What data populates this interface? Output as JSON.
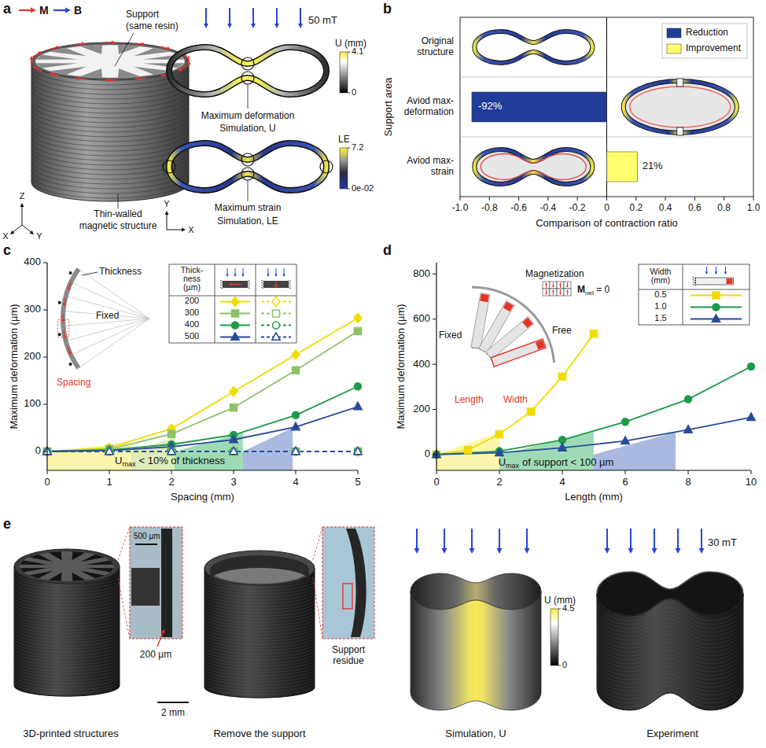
{
  "figure": {
    "panel_letters": [
      "a",
      "b",
      "c",
      "d",
      "e"
    ],
    "a": {
      "legend": [
        "M",
        "B"
      ],
      "support_label": [
        "Support",
        "(same resin)"
      ],
      "structure_label": [
        "Thin-walled",
        "magnetic structure"
      ],
      "axes3d": [
        "Z",
        "X",
        "Y"
      ],
      "field": "50 mT",
      "axes2d": [
        "Y",
        "X"
      ],
      "sim_u": {
        "marker_label": "Maximum deformation",
        "caption": "Simulation, U",
        "colorbar": {
          "title": "U (mm)",
          "range": [
            0,
            4.1
          ],
          "ticks": [
            0,
            4.1
          ]
        }
      },
      "sim_le": {
        "marker_label": "Maximum strain",
        "caption": "Simulation, LE",
        "colorbar": {
          "title": "LE",
          "range": [
            0,
            7.2
          ],
          "ticks": [
            {
              "value": 0,
              "label": "0e-02"
            },
            7.2
          ]
        }
      }
    },
    "e": {
      "captions": [
        "3D-printed structures",
        "Remove the support",
        "Simulation, U",
        "Experiment"
      ],
      "scale_labels": [
        "500 µm",
        "200 µm",
        "2 mm"
      ],
      "residue_label": "Support residue",
      "field": "30 mT",
      "colorbar": {
        "title": "U (mm)",
        "range": [
          0,
          4.5
        ],
        "ticks": [
          0,
          4.5
        ]
      }
    }
  },
  "chart_data": [
    {
      "type": "bar",
      "orientation": "horizontal",
      "categories": [
        "Original structure",
        "Aviod max-deformation",
        "Aviod max-strain"
      ],
      "series": [
        {
          "name": "Reduction",
          "color": "#1f3c98",
          "values": [
            null,
            -0.92,
            null
          ],
          "value_labels": [
            null,
            "-92%",
            null
          ]
        },
        {
          "name": "Improvement",
          "color": "#ffff6e",
          "values": [
            null,
            null,
            0.21
          ],
          "value_labels": [
            null,
            null,
            "21%"
          ]
        }
      ],
      "xlabel": "Comparison of contraction ratio",
      "ylabel": "Support area",
      "xlim": [
        -1,
        1
      ],
      "xticks": [
        {
          "value": -1,
          "label": "-1.0"
        },
        -0.8,
        -0.6,
        -0.4,
        -0.2,
        0,
        0.2,
        0.4,
        0.6,
        0.8,
        {
          "value": 1,
          "label": "1.0"
        }
      ],
      "legend": "upper right",
      "data_labels": true
    },
    {
      "type": "line",
      "xlabel": "Spacing (mm)",
      "ylabel": "Maximum deformation (µm)",
      "x": [
        0,
        1,
        2,
        3,
        4,
        5
      ],
      "xlim": [
        0,
        5
      ],
      "ylim": [
        -40,
        400
      ],
      "xticks": [
        0,
        1,
        2,
        3,
        4,
        5
      ],
      "yticks": [
        0,
        100,
        200,
        300,
        400
      ],
      "legend": "upper right",
      "legend_title": "Thick-ness (µm)",
      "series": [
        {
          "name": "200",
          "color": "#f0dc00",
          "marker": "diamond",
          "line_style": "solid",
          "values": [
            0,
            8,
            48,
            127,
            205,
            283
          ]
        },
        {
          "name": "300",
          "color": "#8fc06a",
          "marker": "square",
          "line_style": "solid",
          "values": [
            0,
            5,
            37,
            93,
            172,
            255
          ]
        },
        {
          "name": "400",
          "color": "#1f9a4a",
          "marker": "circle",
          "line_style": "solid",
          "values": [
            0,
            3,
            15,
            35,
            77,
            138
          ]
        },
        {
          "name": "500",
          "color": "#2a4b9b",
          "marker": "triangle",
          "line_style": "solid",
          "values": [
            0,
            2,
            10,
            25,
            52,
            95
          ]
        },
        {
          "color": "#f0dc00",
          "marker": "diamond-open",
          "line_style": "dashed",
          "values": [
            0,
            0,
            0,
            0,
            0,
            0
          ]
        },
        {
          "color": "#8fc06a",
          "marker": "square-open",
          "line_style": "dashed",
          "values": [
            0,
            0,
            0,
            0,
            0,
            0
          ]
        },
        {
          "color": "#1f9a4a",
          "marker": "circle-open",
          "line_style": "dashed",
          "values": [
            0,
            0,
            0,
            0,
            0,
            0
          ]
        },
        {
          "color": "#2a4b9b",
          "marker": "triangle-open",
          "line_style": "dashed",
          "values": [
            0,
            0,
            0,
            0,
            0,
            0
          ]
        }
      ],
      "bands": [
        {
          "from": 0,
          "to": 1.35,
          "limit": 20,
          "color": "#fbf39a"
        },
        {
          "from": 1.35,
          "to": 2.05,
          "limit": 30,
          "color": "#d6e9a8"
        },
        {
          "from": 2.05,
          "to": 3.15,
          "limit": 40,
          "color": "#86d2a2"
        },
        {
          "from": 3.15,
          "to": 3.95,
          "limit": 50,
          "color": "#93a8d8"
        }
      ],
      "band_label": {
        "main": "U",
        "sub": "max",
        "text": "< 10% of thickness"
      },
      "inset_labels": [
        "Thickness",
        "Fixed",
        "Spacing"
      ]
    },
    {
      "type": "line",
      "xlabel": "Length (mm)",
      "ylabel": "Maximum deformation (µm)",
      "xlim": [
        0,
        10
      ],
      "ylim": [
        -70,
        850
      ],
      "xticks": [
        0,
        2,
        4,
        6,
        8,
        10
      ],
      "yticks": [
        0,
        200,
        400,
        600,
        800
      ],
      "legend": "upper right",
      "legend_title": "Width (mm)",
      "series": [
        {
          "name": "0.5",
          "color": "#f0dc00",
          "marker": "square",
          "line_style": "solid",
          "x": [
            0,
            1,
            2,
            3,
            4,
            5
          ],
          "values": [
            0,
            20,
            90,
            190,
            345,
            535
          ]
        },
        {
          "name": "1.0",
          "color": "#1f9a4a",
          "marker": "circle",
          "line_style": "solid",
          "x": [
            0,
            2,
            4,
            6,
            8,
            10
          ],
          "values": [
            0,
            15,
            65,
            145,
            245,
            390
          ]
        },
        {
          "name": "1.5",
          "color": "#2a4b9b",
          "marker": "triangle",
          "line_style": "solid",
          "x": [
            0,
            2,
            4,
            6,
            8,
            10
          ],
          "values": [
            0,
            8,
            30,
            60,
            110,
            165
          ]
        }
      ],
      "bands": [
        {
          "from": 0,
          "to": 2,
          "limit": 100,
          "color": "#fbf39a"
        },
        {
          "from": 2,
          "to": 5,
          "limit": 100,
          "color": "#86d2a2"
        },
        {
          "from": 5,
          "to": 7.6,
          "limit": 100,
          "color": "#93a8d8"
        }
      ],
      "band_label": {
        "main": "U",
        "sub": "max",
        "text": "of support < 100 µm"
      },
      "inset_labels": [
        "Magnetization",
        "Fixed",
        "Free",
        "Length",
        "Width"
      ],
      "inset_formula": {
        "main": "M",
        "sub": "net",
        "text": "= 0"
      }
    }
  ]
}
